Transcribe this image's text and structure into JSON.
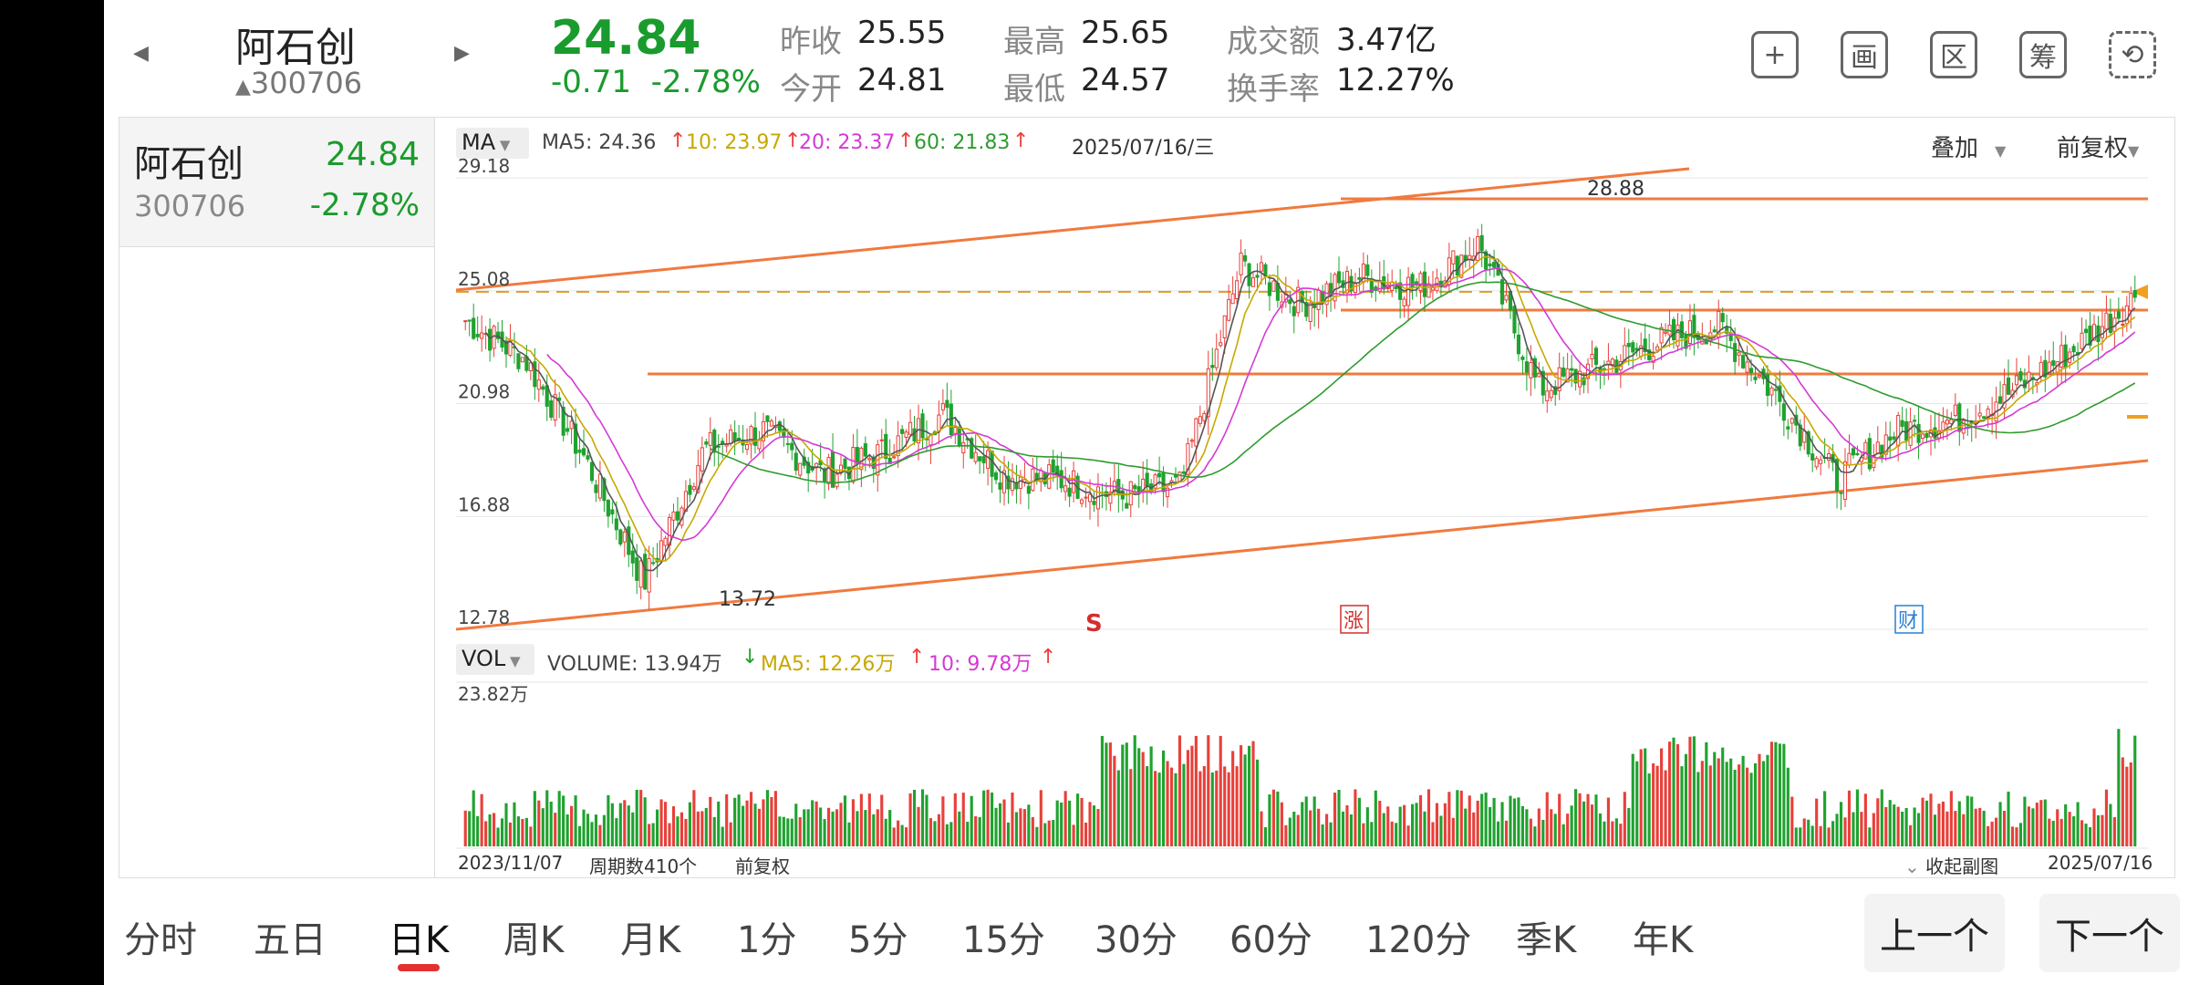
{
  "header": {
    "stock_name": "阿石创",
    "stock_code": "300706",
    "code_arrow": "▲",
    "price": "24.84",
    "change": "-0.71",
    "change_pct": "-2.78%",
    "prev_close_label": "昨收",
    "prev_close": "25.55",
    "open_label": "今开",
    "open": "24.81",
    "high_label": "最高",
    "high": "25.65",
    "low_label": "最低",
    "low": "24.57",
    "amount_label": "成交额",
    "amount": "3.47亿",
    "turnover_label": "换手率",
    "turnover": "12.27%",
    "tools": [
      {
        "icon": "plus-square-icon",
        "glyph": "+"
      },
      {
        "icon": "draw-icon",
        "glyph": "画"
      },
      {
        "icon": "range-icon",
        "glyph": "区"
      },
      {
        "icon": "chips-icon",
        "glyph": "筹"
      },
      {
        "icon": "device-rotate-icon",
        "glyph": "⟲"
      }
    ]
  },
  "sidebar": {
    "name": "阿石创",
    "price": "24.84",
    "code": "300706",
    "change_pct": "-2.78%"
  },
  "chart": {
    "ma_button": "MA",
    "ma5": "MA5: 24.36",
    "ma10": "10: 23.97",
    "ma20": "20: 23.37",
    "ma60": "60: 21.83",
    "date": "2025/07/16/三",
    "overlay": "叠加",
    "adjust": "前复权",
    "y_labels": [
      "29.18",
      "25.08",
      "20.98",
      "16.88",
      "12.78"
    ],
    "high_mark": "28.88",
    "low_mark": "13.72",
    "signal_s": "S",
    "signal_limit": "涨",
    "signal_finance": "财",
    "vol_button": "VOL",
    "volume": "VOLUME: 13.94万",
    "vol_ma5": "MA5: 12.26万",
    "vol_ma10": "10: 9.78万",
    "vol_max": "23.82万",
    "start_date": "2023/11/07",
    "period_count": "周期数410个",
    "adjust_bottom": "前复权",
    "collapse": "收起副图",
    "end_date": "2025/07/16",
    "colors": {
      "up": "#e8403a",
      "down": "#1fa22f",
      "ma5": "#555555",
      "ma10": "#c8a800",
      "ma20": "#d43ad4",
      "ma60": "#2f9b2f",
      "trend": "#f07a3e"
    }
  },
  "chart_data": {
    "type": "candlestick",
    "title": "",
    "xlabel": "",
    "ylabel": "",
    "x_range": [
      "2023/11/07",
      "2025/07/16"
    ],
    "periods": 410,
    "ylim": [
      12.78,
      29.18
    ],
    "y_ticks": [
      29.18,
      25.08,
      20.98,
      16.88,
      12.78
    ],
    "approx_close_path": [
      24.0,
      22.6,
      19.0,
      14.5,
      19.3,
      20.0,
      18.4,
      19.2,
      20.6,
      18.4,
      18.2,
      17.6,
      18.0,
      26.0,
      24.6,
      25.6,
      25.2,
      26.8,
      21.5,
      22.3,
      23.2,
      23.8,
      21.2,
      18.2,
      20.0,
      20.4,
      21.5,
      23.0,
      24.84
    ],
    "period_high": 28.88,
    "period_low": 13.72,
    "volume_max": "23.82万",
    "last_volume": "13.94万"
  },
  "tabs": [
    "分时",
    "五日",
    "日K",
    "周K",
    "月K",
    "1分",
    "5分",
    "15分",
    "30分",
    "60分",
    "120分",
    "季K",
    "年K"
  ],
  "active_tab": 2,
  "nav": {
    "prev": "上一个",
    "next": "下一个"
  }
}
